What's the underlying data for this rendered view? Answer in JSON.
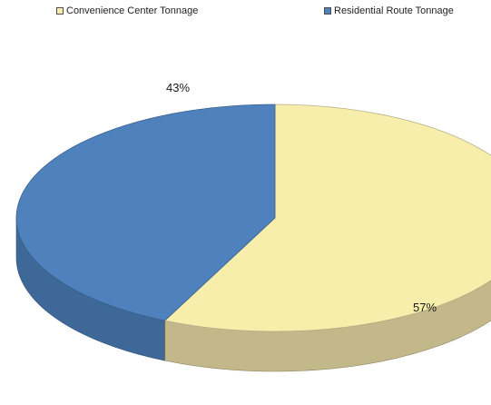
{
  "chart_data": {
    "type": "pie",
    "title": "",
    "style": "3d",
    "legend_position": "top",
    "categories": [
      "Convenience Center Tonnage",
      "Residential Route Tonnage"
    ],
    "values": [
      57,
      43
    ],
    "labels": [
      "57%",
      "43%"
    ],
    "colors": {
      "convenience_top": "#f6eeaa",
      "convenience_side": "#c2b88a",
      "residential_top": "#4f81bd",
      "residential_side": "#3d6897"
    }
  }
}
